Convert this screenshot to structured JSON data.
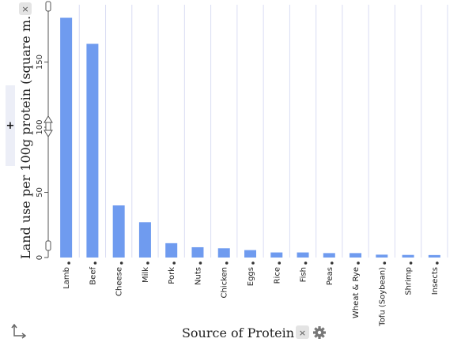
{
  "chart_data": {
    "type": "bar",
    "categories": [
      "Lamb",
      "Beef",
      "Cheese",
      "Milk",
      "Pork",
      "Nuts",
      "Chicken",
      "Eggs",
      "Rice",
      "Fish",
      "Peas",
      "Wheat & Rye",
      "Tofu (Soybean)",
      "Shrimp",
      "Insects"
    ],
    "values": [
      184,
      164,
      40,
      27.1,
      11,
      7.9,
      7.1,
      5.7,
      3.9,
      3.9,
      3.4,
      3.4,
      2.2,
      2.0,
      1.9
    ],
    "ylabel": "Land use per 100g protein (square m...",
    "xlabel": "Source of Protein",
    "ylim": [
      0,
      194
    ],
    "yticks": [
      0,
      50,
      100,
      150
    ],
    "grid": true,
    "bar_color": "#6f9bef"
  },
  "controls": {
    "ylabel_remove_glyph": "×",
    "xlabel_remove_glyph": "×",
    "add_attribute_glyph": "+",
    "settings_icon": "gear-icon",
    "axis_swap_icon": "axis-swap-icon"
  }
}
